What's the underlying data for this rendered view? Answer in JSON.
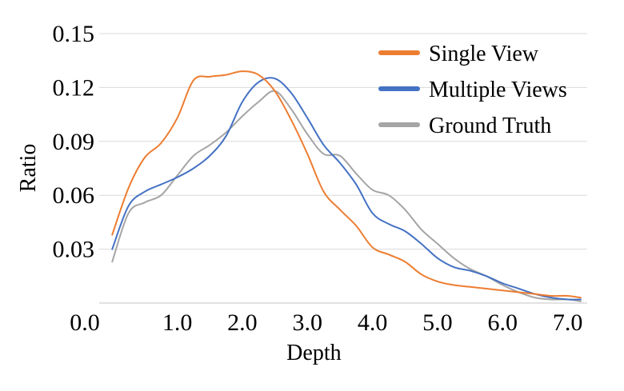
{
  "chart_data": {
    "type": "line",
    "title": "",
    "xlabel": "Depth",
    "ylabel": "Ratio",
    "xlim": [
      -0.2,
      7.3
    ],
    "ylim": [
      0.0,
      0.15
    ],
    "y_ticks": [
      0.03,
      0.06,
      0.09,
      0.12,
      0.15
    ],
    "y_tick_labels": [
      "0.03",
      "0.06",
      "0.09",
      "0.12",
      "0.15"
    ],
    "origin_label": "0.0",
    "x_ticks": [
      1.0,
      2.0,
      3.0,
      4.0,
      5.0,
      6.0,
      7.0
    ],
    "x_tick_labels": [
      "1.0",
      "2.0",
      "3.0",
      "4.0",
      "5.0",
      "6.0",
      "7.0"
    ],
    "grid": "horizontal",
    "legend_position": "top-right",
    "series": [
      {
        "name": "Single View",
        "color": "#ED7D31",
        "x": [
          0.0,
          0.25,
          0.5,
          0.75,
          1.0,
          1.25,
          1.5,
          1.75,
          2.0,
          2.25,
          2.5,
          2.75,
          3.0,
          3.25,
          3.5,
          3.75,
          4.0,
          4.25,
          4.5,
          4.75,
          5.0,
          5.25,
          5.5,
          5.75,
          6.0,
          6.25,
          6.5,
          6.75,
          7.0,
          7.2
        ],
        "y": [
          0.038,
          0.064,
          0.081,
          0.089,
          0.103,
          0.124,
          0.126,
          0.127,
          0.129,
          0.127,
          0.118,
          0.102,
          0.083,
          0.062,
          0.052,
          0.043,
          0.031,
          0.027,
          0.023,
          0.016,
          0.012,
          0.01,
          0.009,
          0.008,
          0.007,
          0.006,
          0.005,
          0.004,
          0.004,
          0.003
        ]
      },
      {
        "name": "Multiple Views",
        "color": "#4472C4",
        "x": [
          0.0,
          0.25,
          0.5,
          0.75,
          1.0,
          1.25,
          1.5,
          1.75,
          2.0,
          2.25,
          2.5,
          2.75,
          3.0,
          3.25,
          3.5,
          3.75,
          4.0,
          4.25,
          4.5,
          4.75,
          5.0,
          5.25,
          5.5,
          5.75,
          6.0,
          6.25,
          6.5,
          6.75,
          7.0,
          7.2
        ],
        "y": [
          0.03,
          0.054,
          0.062,
          0.066,
          0.07,
          0.075,
          0.082,
          0.093,
          0.112,
          0.123,
          0.125,
          0.117,
          0.103,
          0.088,
          0.078,
          0.066,
          0.05,
          0.044,
          0.04,
          0.033,
          0.025,
          0.02,
          0.018,
          0.015,
          0.011,
          0.008,
          0.005,
          0.003,
          0.002,
          0.002
        ]
      },
      {
        "name": "Ground Truth",
        "color": "#A5A5A5",
        "x": [
          0.0,
          0.25,
          0.5,
          0.75,
          1.0,
          1.25,
          1.5,
          1.75,
          2.0,
          2.25,
          2.5,
          2.75,
          3.0,
          3.25,
          3.5,
          3.75,
          4.0,
          4.25,
          4.5,
          4.75,
          5.0,
          5.25,
          5.5,
          5.75,
          6.0,
          6.25,
          6.5,
          6.75,
          7.0,
          7.2
        ],
        "y": [
          0.023,
          0.05,
          0.056,
          0.06,
          0.071,
          0.082,
          0.088,
          0.095,
          0.104,
          0.112,
          0.118,
          0.108,
          0.094,
          0.083,
          0.082,
          0.072,
          0.063,
          0.06,
          0.052,
          0.041,
          0.033,
          0.025,
          0.019,
          0.015,
          0.01,
          0.006,
          0.003,
          0.002,
          0.002,
          0.001
        ]
      }
    ]
  }
}
